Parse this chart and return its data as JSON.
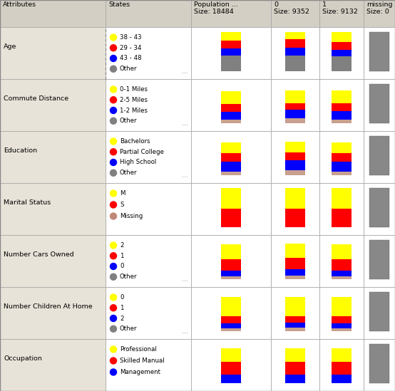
{
  "header_bg": "#d4cfc4",
  "row_bg_attr": "#e8e3d8",
  "row_bg_white": "#ffffff",
  "border_color": "#aaaaaa",
  "header": [
    "Attributes",
    "States",
    "Population ...\nSize: 18484",
    "0\nSize: 9352",
    "1\nSize: 9132",
    "missing\nSize: 0"
  ],
  "rows": [
    {
      "attribute": "Age",
      "states": [
        "38 - 43",
        "29 - 34",
        "43 - 48",
        "Other"
      ],
      "state_colors": [
        "#ffff00",
        "#ff0000",
        "#0000ff",
        "#808080"
      ],
      "dotted_attr": true,
      "has_ellipsis": true,
      "bars": {
        "population": {
          "segments": [
            0.22,
            0.2,
            0.18,
            0.4
          ],
          "colors": [
            "#ffff00",
            "#ff0000",
            "#0000ff",
            "#808080"
          ]
        },
        "c0": {
          "segments": [
            0.18,
            0.22,
            0.2,
            0.4
          ],
          "colors": [
            "#ffff00",
            "#ff0000",
            "#0000ff",
            "#808080"
          ]
        },
        "c1": {
          "segments": [
            0.25,
            0.2,
            0.16,
            0.39
          ],
          "colors": [
            "#ffff00",
            "#ff0000",
            "#0000ff",
            "#808080"
          ]
        },
        "missing": {
          "is_gray": true
        }
      }
    },
    {
      "attribute": "Commute Distance",
      "states": [
        "0-1 Miles",
        "2-5 Miles",
        "1-2 Miles",
        "Other"
      ],
      "state_colors": [
        "#ffff00",
        "#ff0000",
        "#0000ff",
        "#808080"
      ],
      "dotted_attr": false,
      "has_ellipsis": true,
      "bars": {
        "population": {
          "segments": [
            0.33,
            0.2,
            0.2,
            0.1
          ],
          "colors": [
            "#ffff00",
            "#ff0000",
            "#0000ff",
            "#c8a090"
          ]
        },
        "c0": {
          "segments": [
            0.33,
            0.18,
            0.22,
            0.12
          ],
          "colors": [
            "#ffff00",
            "#ff0000",
            "#0000ff",
            "#c8a090"
          ]
        },
        "c1": {
          "segments": [
            0.33,
            0.2,
            0.22,
            0.1
          ],
          "colors": [
            "#ffff00",
            "#ff0000",
            "#0000ff",
            "#c8a090"
          ]
        },
        "missing": {
          "is_gray": true
        }
      }
    },
    {
      "attribute": "Education",
      "states": [
        "Bachelors",
        "Partial College",
        "High School",
        "Other"
      ],
      "state_colors": [
        "#ffff00",
        "#ff0000",
        "#0000ff",
        "#808080"
      ],
      "dotted_attr": false,
      "has_ellipsis": true,
      "bars": {
        "population": {
          "segments": [
            0.28,
            0.22,
            0.24,
            0.1
          ],
          "colors": [
            "#ffff00",
            "#ff0000",
            "#0000ff",
            "#c8a090"
          ]
        },
        "c0": {
          "segments": [
            0.28,
            0.2,
            0.26,
            0.12
          ],
          "colors": [
            "#ffff00",
            "#ff0000",
            "#0000ff",
            "#c8a090"
          ]
        },
        "c1": {
          "segments": [
            0.28,
            0.22,
            0.24,
            0.1
          ],
          "colors": [
            "#ffff00",
            "#ff0000",
            "#0000ff",
            "#c8a090"
          ]
        },
        "missing": {
          "is_gray": true
        }
      }
    },
    {
      "attribute": "Marital Status",
      "states": [
        "M",
        "S",
        "Missing"
      ],
      "state_colors": [
        "#ffff00",
        "#ff0000",
        "#c08878"
      ],
      "dotted_attr": false,
      "has_ellipsis": false,
      "bars": {
        "population": {
          "segments": [
            0.52,
            0.48
          ],
          "colors": [
            "#ffff00",
            "#ff0000"
          ]
        },
        "c0": {
          "segments": [
            0.52,
            0.48
          ],
          "colors": [
            "#ffff00",
            "#ff0000"
          ]
        },
        "c1": {
          "segments": [
            0.52,
            0.48
          ],
          "colors": [
            "#ffff00",
            "#ff0000"
          ]
        },
        "missing": {
          "is_gray": true
        }
      }
    },
    {
      "attribute": "Number Cars Owned",
      "states": [
        "2",
        "1",
        "0",
        "Other"
      ],
      "state_colors": [
        "#ffff00",
        "#ff0000",
        "#0000ff",
        "#808080"
      ],
      "dotted_attr": false,
      "has_ellipsis": true,
      "bars": {
        "population": {
          "segments": [
            0.38,
            0.3,
            0.14,
            0.08
          ],
          "colors": [
            "#ffff00",
            "#ff0000",
            "#0000ff",
            "#c8a090"
          ]
        },
        "c0": {
          "segments": [
            0.38,
            0.28,
            0.16,
            0.1
          ],
          "colors": [
            "#ffff00",
            "#ff0000",
            "#0000ff",
            "#c8a090"
          ]
        },
        "c1": {
          "segments": [
            0.38,
            0.3,
            0.14,
            0.08
          ],
          "colors": [
            "#ffff00",
            "#ff0000",
            "#0000ff",
            "#c8a090"
          ]
        },
        "missing": {
          "is_gray": true
        }
      }
    },
    {
      "attribute": "Number Children At Home",
      "states": [
        "0",
        "1",
        "2",
        "Other"
      ],
      "state_colors": [
        "#ffff00",
        "#ff0000",
        "#0000ff",
        "#808080"
      ],
      "dotted_attr": false,
      "has_ellipsis": true,
      "bars": {
        "population": {
          "segments": [
            0.5,
            0.18,
            0.12,
            0.08
          ],
          "colors": [
            "#ffff00",
            "#ff0000",
            "#0000ff",
            "#c8a090"
          ]
        },
        "c0": {
          "segments": [
            0.5,
            0.16,
            0.12,
            0.1
          ],
          "colors": [
            "#ffff00",
            "#ff0000",
            "#0000ff",
            "#c8a090"
          ]
        },
        "c1": {
          "segments": [
            0.5,
            0.18,
            0.12,
            0.08
          ],
          "colors": [
            "#ffff00",
            "#ff0000",
            "#0000ff",
            "#c8a090"
          ]
        },
        "missing": {
          "is_gray": true
        }
      }
    },
    {
      "attribute": "Occupation",
      "states": [
        "Professional",
        "Skilled Manual",
        "Management"
      ],
      "state_colors": [
        "#ffff00",
        "#ff0000",
        "#0000ff"
      ],
      "dotted_attr": false,
      "has_ellipsis": false,
      "bars": {
        "population": {
          "segments": [
            0.36,
            0.32,
            0.22
          ],
          "colors": [
            "#ffff00",
            "#ff0000",
            "#0000ff"
          ]
        },
        "c0": {
          "segments": [
            0.36,
            0.32,
            0.22
          ],
          "colors": [
            "#ffff00",
            "#ff0000",
            "#0000ff"
          ]
        },
        "c1": {
          "segments": [
            0.36,
            0.32,
            0.22
          ],
          "colors": [
            "#ffff00",
            "#ff0000",
            "#0000ff"
          ]
        },
        "missing": {
          "is_gray": true
        }
      }
    }
  ]
}
